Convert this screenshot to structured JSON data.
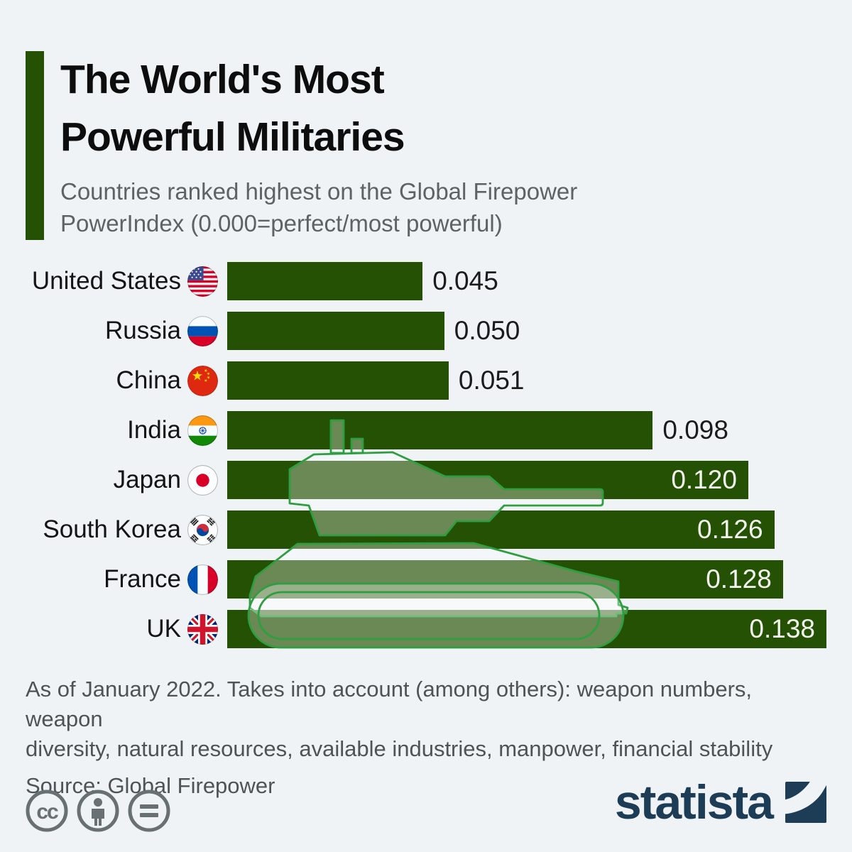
{
  "page": {
    "background": "#eff3f6"
  },
  "header": {
    "accent_color": "#255104",
    "title_lines": [
      "The World's Most",
      "Powerful Militaries"
    ],
    "subtitle_lines": [
      "Countries ranked highest on the Global Firepower",
      "PowerIndex (0.000=perfect/most powerful)"
    ]
  },
  "chart_data": {
    "type": "bar",
    "orientation": "horizontal",
    "title": "The World's Most Powerful Militaries",
    "subtitle": "Countries ranked highest on the Global Firepower PowerIndex (0.000=perfect/most powerful)",
    "categories": [
      "United States",
      "Russia",
      "China",
      "India",
      "Japan",
      "South Korea",
      "France",
      "UK"
    ],
    "values": [
      0.045,
      0.05,
      0.051,
      0.098,
      0.12,
      0.126,
      0.128,
      0.138
    ],
    "value_labels": [
      "0.045",
      "0.050",
      "0.051",
      "0.098",
      "0.120",
      "0.126",
      "0.128",
      "0.138"
    ],
    "flags": [
      "us",
      "ru",
      "cn",
      "in",
      "jp",
      "kr",
      "fr",
      "uk"
    ],
    "value_label_inside": [
      false,
      false,
      false,
      false,
      true,
      true,
      true,
      true
    ],
    "xlim": [
      0,
      0.138
    ],
    "bar_color": "#255104",
    "grid": false,
    "legend": null,
    "watermark": "tank-silhouette"
  },
  "watermark": {
    "stroke": "#2f9e40",
    "fill": "rgba(255,255,255,0.32)"
  },
  "footer": {
    "note_lines": [
      "As of January 2022. Takes into account (among others): weapon numbers, weapon",
      "diversity, natural resources, available industries, manpower, financial stability"
    ],
    "source": "Source: Global Firepower",
    "license_icons": [
      "cc-icon",
      "attribution-icon",
      "equals-icon"
    ],
    "brand": "statista",
    "brand_color": "#1d3c55"
  }
}
